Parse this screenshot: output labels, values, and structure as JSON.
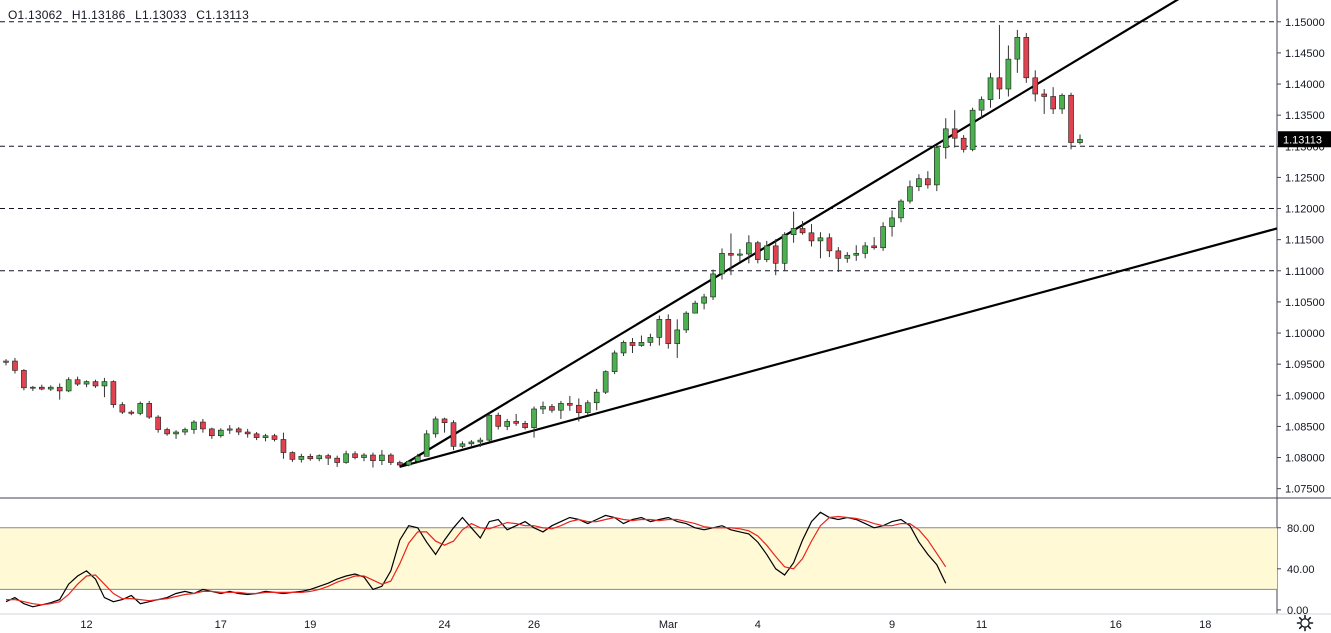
{
  "ohlc": {
    "open_label": "O",
    "open": "1.13062",
    "high_label": "H",
    "high": "1.13186",
    "low_label": "L",
    "low": "1.13033",
    "close_label": "C",
    "close": "1.13113"
  },
  "colors": {
    "up": "#4caf50",
    "down": "#e0434f",
    "wick": "#333333",
    "stoch_k": "#000000",
    "stoch_d": "#e8251f",
    "stoch_band": "#fff9d6",
    "price_badge_bg": "#000000",
    "price_badge_fg": "#ffffff"
  },
  "icons": {
    "settings": "gear-icon"
  },
  "chart_data": [
    {
      "type": "candlestick",
      "instrument_timeframe": "daily",
      "current_price_label": "1.13113",
      "y_ticks": [
        "1.15000",
        "1.14500",
        "1.14000",
        "1.13500",
        "1.13000",
        "1.12500",
        "1.12000",
        "1.11500",
        "1.11000",
        "1.10500",
        "1.10000",
        "1.09500",
        "1.09000",
        "1.08500",
        "1.08000",
        "1.07500"
      ],
      "ylim": [
        1.0735,
        1.1535
      ],
      "x_ticks": [
        "12",
        "17",
        "19",
        "24",
        "26",
        "Mar",
        "4",
        "9",
        "11",
        "16",
        "18"
      ],
      "x_tick_index": [
        9,
        24,
        34,
        49,
        59,
        74,
        84,
        99,
        109,
        124,
        134
      ],
      "horizontal_levels": [
        1.15,
        1.13,
        1.12,
        1.11
      ],
      "trendlines": [
        {
          "from": [
            44,
            1.0785
          ],
          "to": [
            132,
            1.1545
          ]
        },
        {
          "from": [
            44,
            1.0785
          ],
          "to": [
            142,
            1.1168
          ]
        }
      ],
      "candles": [
        [
          1.0953,
          1.0958,
          1.0948,
          1.0955
        ],
        [
          1.0955,
          1.096,
          1.0935,
          1.094
        ],
        [
          1.094,
          1.0942,
          1.0908,
          1.0912
        ],
        [
          1.0912,
          1.0915,
          1.0907,
          1.0913
        ],
        [
          1.0913,
          1.0917,
          1.0908,
          1.091
        ],
        [
          1.091,
          1.0916,
          1.0907,
          1.0913
        ],
        [
          1.0913,
          1.0919,
          1.0893,
          1.0907
        ],
        [
          1.0907,
          1.0929,
          1.0905,
          1.0925
        ],
        [
          1.0925,
          1.093,
          1.0915,
          1.0918
        ],
        [
          1.0918,
          1.0924,
          1.0913,
          1.0922
        ],
        [
          1.0922,
          1.0925,
          1.0912,
          1.0915
        ],
        [
          1.0915,
          1.0928,
          1.0897,
          1.0922
        ],
        [
          1.0922,
          1.0924,
          1.088,
          1.0885
        ],
        [
          1.0885,
          1.0889,
          1.087,
          1.0873
        ],
        [
          1.0873,
          1.0876,
          1.0868,
          1.0871
        ],
        [
          1.0871,
          1.089,
          1.0868,
          1.0887
        ],
        [
          1.0887,
          1.0891,
          1.0862,
          1.0865
        ],
        [
          1.0865,
          1.0868,
          1.084,
          1.0845
        ],
        [
          1.0845,
          1.0848,
          1.0835,
          1.0838
        ],
        [
          1.0838,
          1.0844,
          1.083,
          1.0841
        ],
        [
          1.0841,
          1.0848,
          1.0836,
          1.0845
        ],
        [
          1.0845,
          1.086,
          1.0838,
          1.0857
        ],
        [
          1.0857,
          1.0862,
          1.084,
          1.0846
        ],
        [
          1.0846,
          1.0848,
          1.083,
          1.0835
        ],
        [
          1.0835,
          1.0847,
          1.0832,
          1.0844
        ],
        [
          1.0844,
          1.0852,
          1.0838,
          1.0846
        ],
        [
          1.0846,
          1.0849,
          1.0836,
          1.0841
        ],
        [
          1.0841,
          1.0846,
          1.0832,
          1.0838
        ],
        [
          1.0838,
          1.0841,
          1.0828,
          1.0832
        ],
        [
          1.0832,
          1.0838,
          1.0826,
          1.0835
        ],
        [
          1.0835,
          1.0838,
          1.0826,
          1.0829
        ],
        [
          1.0829,
          1.084,
          1.0798,
          1.0808
        ],
        [
          1.0808,
          1.081,
          1.0793,
          1.0797
        ],
        [
          1.0797,
          1.0806,
          1.0792,
          1.0802
        ],
        [
          1.0802,
          1.0806,
          1.0795,
          1.0798
        ],
        [
          1.0798,
          1.0805,
          1.0794,
          1.0803
        ],
        [
          1.0803,
          1.0806,
          1.0788,
          1.0799
        ],
        [
          1.0799,
          1.0803,
          1.0785,
          1.0792
        ],
        [
          1.0792,
          1.0811,
          1.079,
          1.0806
        ],
        [
          1.0806,
          1.081,
          1.0797,
          1.08
        ],
        [
          1.08,
          1.0807,
          1.0794,
          1.0804
        ],
        [
          1.0804,
          1.0808,
          1.0784,
          1.0795
        ],
        [
          1.0795,
          1.0812,
          1.0788,
          1.0804
        ],
        [
          1.0804,
          1.0807,
          1.0788,
          1.0792
        ],
        [
          1.0792,
          1.0795,
          1.0784,
          1.0788
        ],
        [
          1.0788,
          1.0796,
          1.0786,
          1.0794
        ],
        [
          1.0794,
          1.0806,
          1.0791,
          1.0802
        ],
        [
          1.0802,
          1.0844,
          1.0802,
          1.0838
        ],
        [
          1.0838,
          1.0866,
          1.0832,
          1.0862
        ],
        [
          1.0862,
          1.0864,
          1.084,
          1.0856
        ],
        [
          1.0856,
          1.086,
          1.0812,
          1.0818
        ],
        [
          1.0818,
          1.0826,
          1.0815,
          1.0822
        ],
        [
          1.0822,
          1.0828,
          1.0818,
          1.0825
        ],
        [
          1.0825,
          1.0832,
          1.0817,
          1.0828
        ],
        [
          1.0828,
          1.0872,
          1.0826,
          1.0868
        ],
        [
          1.0868,
          1.0872,
          1.0845,
          1.085
        ],
        [
          1.085,
          1.0862,
          1.0844,
          1.0858
        ],
        [
          1.0858,
          1.087,
          1.0851,
          1.0855
        ],
        [
          1.0855,
          1.0859,
          1.0845,
          1.0848
        ],
        [
          1.0848,
          1.0882,
          1.0832,
          1.0878
        ],
        [
          1.0878,
          1.089,
          1.087,
          1.0882
        ],
        [
          1.0882,
          1.0886,
          1.0872,
          1.0876
        ],
        [
          1.0876,
          1.0891,
          1.0862,
          1.0887
        ],
        [
          1.0887,
          1.0899,
          1.0875,
          1.0884
        ],
        [
          1.0884,
          1.0895,
          1.0858,
          1.0872
        ],
        [
          1.0872,
          1.0892,
          1.0868,
          1.0888
        ],
        [
          1.0888,
          1.091,
          1.0876,
          1.0905
        ],
        [
          1.0905,
          1.094,
          1.0902,
          1.0938
        ],
        [
          1.0938,
          1.0972,
          1.0934,
          1.0968
        ],
        [
          1.0968,
          1.0988,
          1.0963,
          1.0985
        ],
        [
          1.0985,
          1.0992,
          1.0968,
          1.098
        ],
        [
          1.098,
          1.0996,
          1.0978,
          1.0985
        ],
        [
          1.0985,
          1.0999,
          1.0979,
          1.0993
        ],
        [
          1.0993,
          1.1028,
          1.098,
          1.1022
        ],
        [
          1.1022,
          1.103,
          1.0975,
          1.0983
        ],
        [
          1.0983,
          1.1022,
          1.096,
          1.1005
        ],
        [
          1.1005,
          1.1035,
          1.1,
          1.1032
        ],
        [
          1.1032,
          1.1052,
          1.1032,
          1.1048
        ],
        [
          1.1048,
          1.1063,
          1.1038,
          1.1058
        ],
        [
          1.1058,
          1.1102,
          1.1053,
          1.1095
        ],
        [
          1.1095,
          1.1136,
          1.1086,
          1.1128
        ],
        [
          1.1128,
          1.116,
          1.1093,
          1.1125
        ],
        [
          1.1125,
          1.1135,
          1.1115,
          1.1127
        ],
        [
          1.1127,
          1.1157,
          1.1112,
          1.1145
        ],
        [
          1.1145,
          1.1148,
          1.1112,
          1.1118
        ],
        [
          1.1118,
          1.1148,
          1.1114,
          1.114
        ],
        [
          1.114,
          1.1151,
          1.1093,
          1.1112
        ],
        [
          1.1112,
          1.1162,
          1.11,
          1.1158
        ],
        [
          1.1158,
          1.1195,
          1.1145,
          1.1168
        ],
        [
          1.1168,
          1.118,
          1.1158,
          1.1161
        ],
        [
          1.1161,
          1.1175,
          1.1139,
          1.1148
        ],
        [
          1.1148,
          1.1162,
          1.112,
          1.1153
        ],
        [
          1.1153,
          1.116,
          1.1122,
          1.1132
        ],
        [
          1.1132,
          1.1138,
          1.1098,
          1.112
        ],
        [
          1.112,
          1.113,
          1.1113,
          1.1125
        ],
        [
          1.1125,
          1.1141,
          1.1116,
          1.1128
        ],
        [
          1.1128,
          1.1146,
          1.112,
          1.114
        ],
        [
          1.114,
          1.1154,
          1.1134,
          1.1137
        ],
        [
          1.1137,
          1.1178,
          1.1132,
          1.1171
        ],
        [
          1.1171,
          1.1197,
          1.1155,
          1.1185
        ],
        [
          1.1185,
          1.1215,
          1.1178,
          1.1212
        ],
        [
          1.1212,
          1.1245,
          1.1208,
          1.1235
        ],
        [
          1.1235,
          1.1255,
          1.1228,
          1.1248
        ],
        [
          1.1248,
          1.126,
          1.1232,
          1.1238
        ],
        [
          1.1238,
          1.1302,
          1.1228,
          1.1298
        ],
        [
          1.1298,
          1.1345,
          1.128,
          1.1328
        ],
        [
          1.1328,
          1.1358,
          1.1298,
          1.1313
        ],
        [
          1.1313,
          1.1318,
          1.129,
          1.1295
        ],
        [
          1.1295,
          1.1362,
          1.1292,
          1.1358
        ],
        [
          1.1358,
          1.138,
          1.1345,
          1.1375
        ],
        [
          1.1375,
          1.1418,
          1.1362,
          1.141
        ],
        [
          1.141,
          1.1495,
          1.1376,
          1.1392
        ],
        [
          1.1392,
          1.1462,
          1.138,
          1.144
        ],
        [
          1.144,
          1.1487,
          1.1418,
          1.1475
        ],
        [
          1.1475,
          1.1482,
          1.1402,
          1.141
        ],
        [
          1.141,
          1.1422,
          1.1372,
          1.1384
        ],
        [
          1.1384,
          1.1392,
          1.1352,
          1.138
        ],
        [
          1.138,
          1.1395,
          1.1352,
          1.136
        ],
        [
          1.136,
          1.1385,
          1.1352,
          1.1382
        ],
        [
          1.1382,
          1.1386,
          1.1295,
          1.1306
        ],
        [
          1.1306,
          1.1319,
          1.1303,
          1.1311
        ]
      ]
    },
    {
      "type": "line",
      "indicator": "stochastic",
      "y_ticks": [
        "80.00",
        "40.00",
        "0.00"
      ],
      "ylim": [
        -4,
        108
      ],
      "band": [
        20,
        80
      ],
      "series": [
        {
          "color": "#000000",
          "values": [
            8,
            12,
            6,
            3,
            5,
            7,
            10,
            25,
            33,
            38,
            30,
            12,
            8,
            10,
            14,
            6,
            8,
            10,
            12,
            16,
            18,
            16,
            20,
            18,
            16,
            18,
            16,
            15,
            16,
            18,
            17,
            16,
            17,
            18,
            20,
            23,
            26,
            30,
            33,
            35,
            32,
            20,
            23,
            38,
            68,
            82,
            80,
            66,
            54,
            68,
            80,
            90,
            80,
            70,
            86,
            88,
            78,
            82,
            86,
            80,
            76,
            82,
            86,
            90,
            88,
            84,
            88,
            92,
            90,
            84,
            88,
            90,
            86,
            88,
            90,
            86,
            84,
            80,
            78,
            80,
            82,
            78,
            76,
            74,
            66,
            54,
            40,
            34,
            46,
            68,
            86,
            95,
            90,
            88,
            90,
            88,
            84,
            80,
            82,
            86,
            88,
            82,
            66,
            54,
            44,
            26
          ]
        },
        {
          "color": "#e8251f",
          "values": [
            10,
            10,
            8,
            6,
            5,
            6,
            8,
            15,
            25,
            33,
            34,
            25,
            16,
            11,
            11,
            10,
            9,
            10,
            11,
            13,
            15,
            16,
            18,
            18,
            17,
            17,
            17,
            16,
            16,
            17,
            17,
            17,
            17,
            17,
            18,
            20,
            23,
            27,
            30,
            33,
            33,
            29,
            25,
            28,
            45,
            65,
            76,
            76,
            67,
            63,
            67,
            78,
            84,
            80,
            79,
            82,
            85,
            84,
            82,
            82,
            80,
            79,
            82,
            86,
            88,
            86,
            86,
            88,
            90,
            88,
            87,
            88,
            88,
            87,
            88,
            88,
            86,
            84,
            81,
            80,
            80,
            80,
            79,
            77,
            72,
            63,
            52,
            42,
            40,
            50,
            67,
            82,
            90,
            91,
            90,
            89,
            87,
            84,
            82,
            82,
            84,
            84,
            78,
            68,
            55,
            42
          ]
        }
      ]
    }
  ]
}
